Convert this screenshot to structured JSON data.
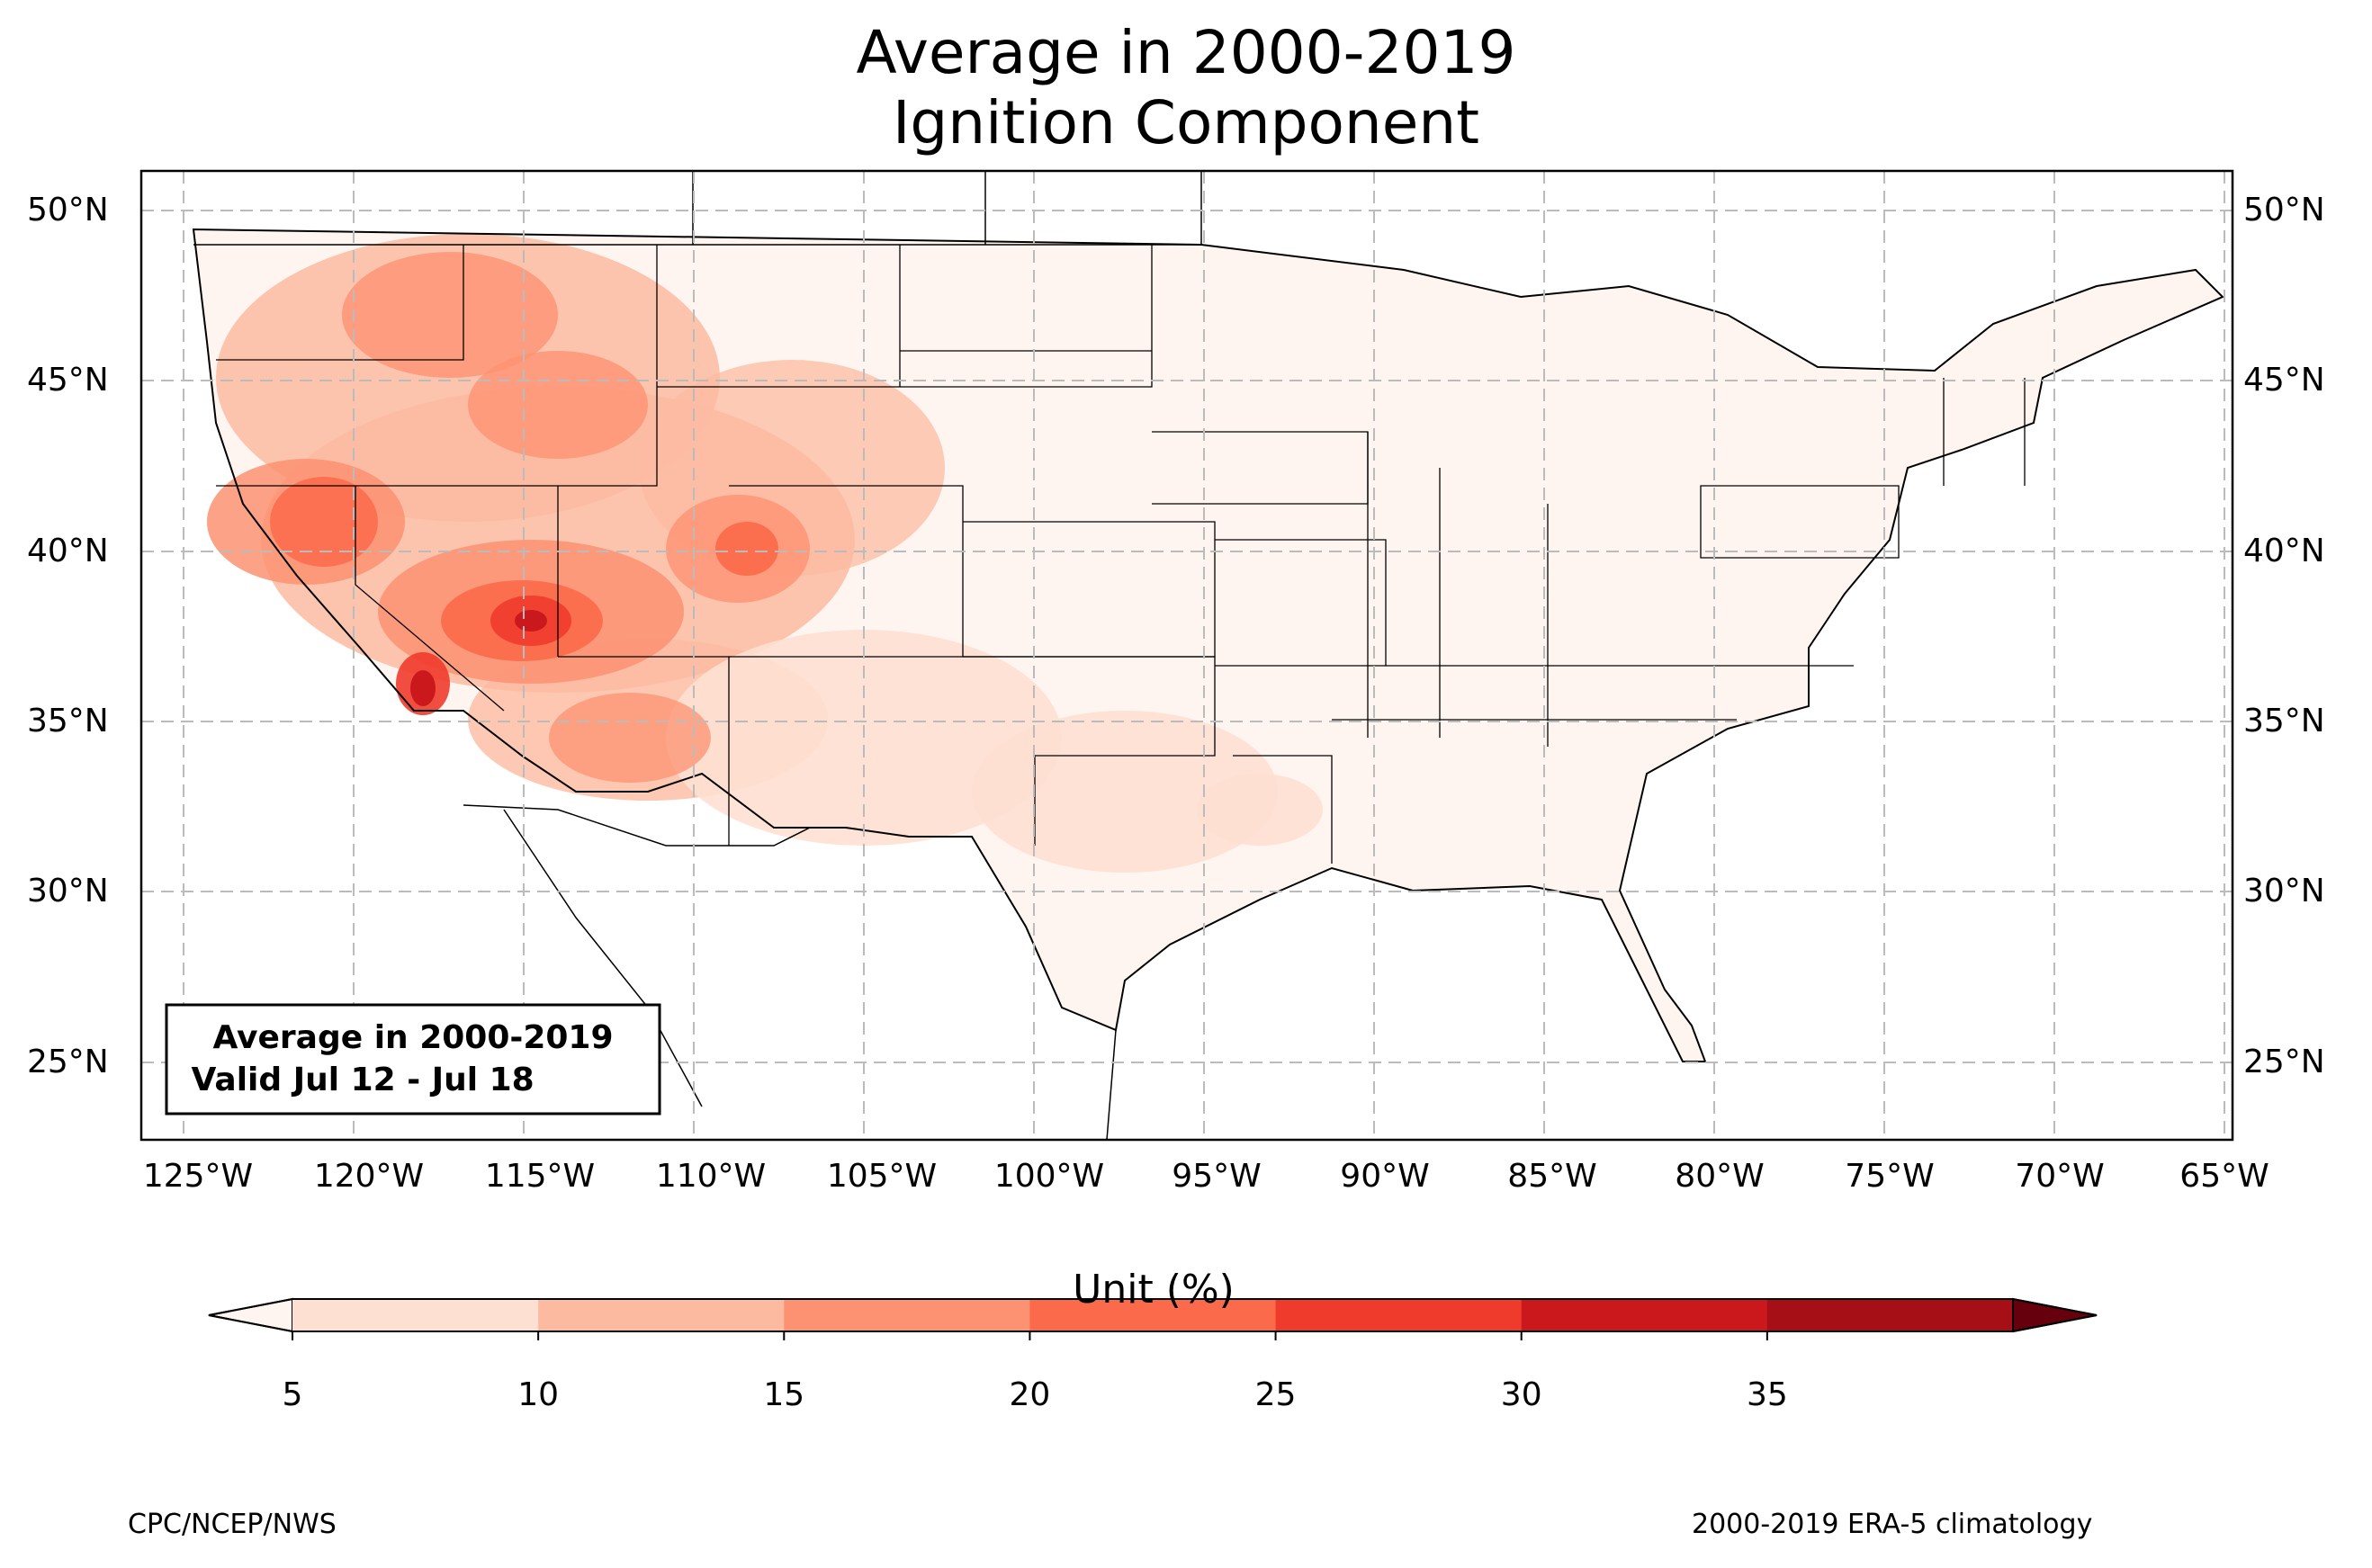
{
  "title": {
    "line1": "Average in 2000-2019",
    "line2": "Ignition Component"
  },
  "map": {
    "lat_labels": [
      "50°N",
      "45°N",
      "40°N",
      "35°N",
      "30°N",
      "25°N"
    ],
    "lon_labels": [
      "125°W",
      "120°W",
      "115°W",
      "110°W",
      "105°W",
      "100°W",
      "95°W",
      "90°W",
      "85°W",
      "80°W",
      "75°W",
      "70°W",
      "65°W"
    ],
    "legend_box": {
      "line1": "Average in 2000-2019",
      "line2": " Valid Jul 12 - Jul 18"
    }
  },
  "colorbar": {
    "title": "Unit (%)",
    "ticks": [
      "5",
      "10",
      "15",
      "20",
      "25",
      "30",
      "35"
    ],
    "colors": [
      "#fee0d2",
      "#fcbba1",
      "#fc9272",
      "#fb6a4a",
      "#ef3b2c",
      "#cb181d",
      "#a50f15"
    ],
    "under_color": "#fff5f0",
    "over_color": "#67000d"
  },
  "footer": {
    "left": "CPC/NCEP/NWS",
    "right": "2000-2019 ERA-5 climatology"
  }
}
